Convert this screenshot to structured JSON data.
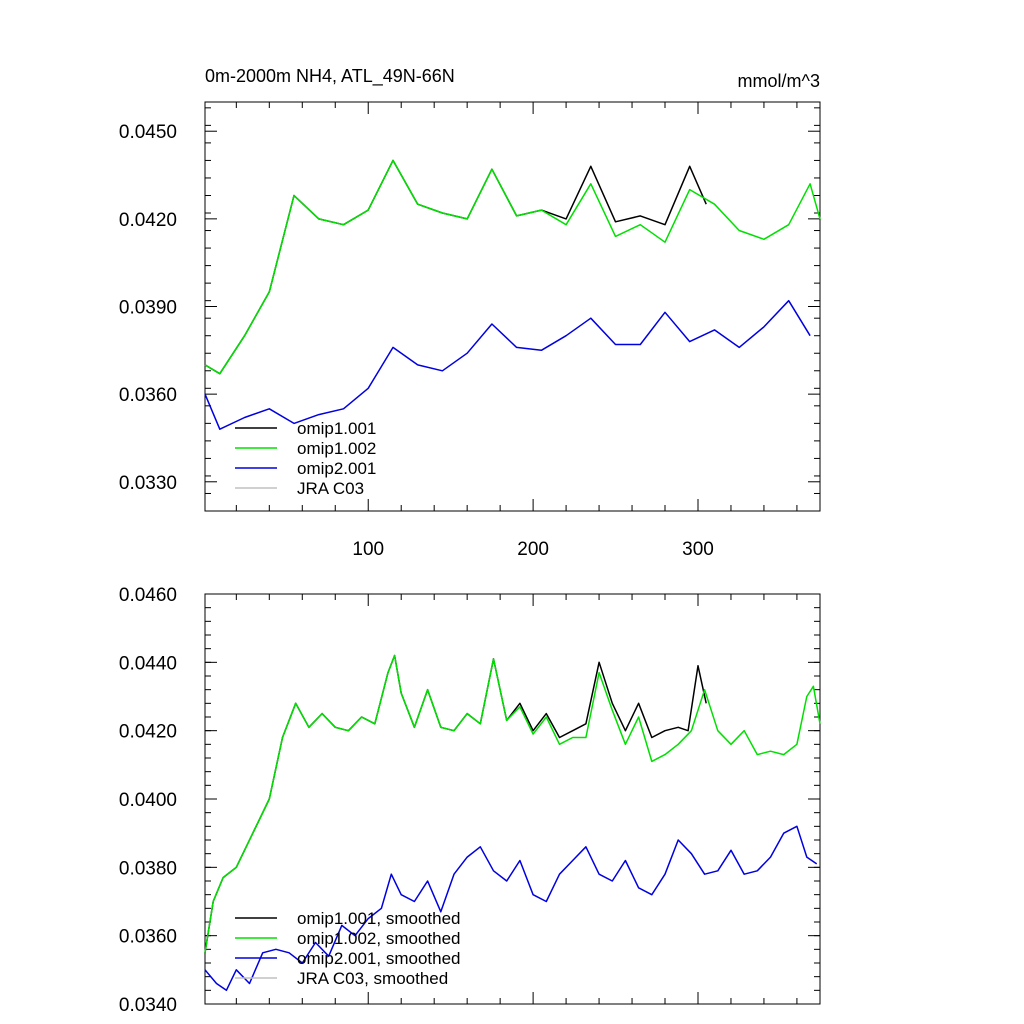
{
  "chart_data": [
    {
      "type": "line",
      "title": "0m-2000m NH4, ATL_49N-66N",
      "units": "mmol/m^3",
      "xlim": [
        1,
        374
      ],
      "ylim": [
        0.032,
        0.046
      ],
      "xticks": [
        100,
        200,
        300
      ],
      "yticks": [
        0.033,
        0.036,
        0.039,
        0.042,
        0.045
      ],
      "ytick_labels": [
        "0.0330",
        "0.0360",
        "0.0390",
        "0.0420",
        "0.0450"
      ],
      "xtick_labels": [
        "100",
        "200",
        "300"
      ],
      "legend": {
        "placement": "bottom-left"
      },
      "series": [
        {
          "name": "omip1.001",
          "color": "#000000",
          "x": [
            1,
            10,
            25,
            40,
            55,
            70,
            85,
            100,
            115,
            130,
            145,
            160,
            175,
            190,
            205,
            220,
            235,
            250,
            265,
            280,
            295,
            305
          ],
          "y": [
            0.037,
            0.0367,
            0.038,
            0.0395,
            0.0428,
            0.042,
            0.0418,
            0.0423,
            0.044,
            0.0425,
            0.0422,
            0.042,
            0.0437,
            0.0421,
            0.0423,
            0.042,
            0.0438,
            0.0419,
            0.0421,
            0.0418,
            0.0438,
            0.0425
          ]
        },
        {
          "name": "omip1.002",
          "color": "#00e000",
          "x": [
            1,
            10,
            25,
            40,
            55,
            70,
            85,
            100,
            115,
            130,
            145,
            160,
            175,
            190,
            205,
            220,
            235,
            250,
            265,
            280,
            295,
            310,
            325,
            340,
            355,
            368,
            374
          ],
          "y": [
            0.037,
            0.0367,
            0.038,
            0.0395,
            0.0428,
            0.042,
            0.0418,
            0.0423,
            0.044,
            0.0425,
            0.0422,
            0.042,
            0.0437,
            0.0421,
            0.0423,
            0.0418,
            0.0432,
            0.0414,
            0.0418,
            0.0412,
            0.043,
            0.0425,
            0.0416,
            0.0413,
            0.0418,
            0.0432,
            0.042
          ]
        },
        {
          "name": "omip2.001",
          "color": "#0000e0",
          "x": [
            1,
            10,
            25,
            40,
            55,
            70,
            85,
            100,
            115,
            130,
            145,
            160,
            175,
            190,
            205,
            220,
            235,
            250,
            265,
            280,
            295,
            310,
            325,
            340,
            355,
            368
          ],
          "y": [
            0.036,
            0.0348,
            0.0352,
            0.0355,
            0.035,
            0.0353,
            0.0355,
            0.0362,
            0.0376,
            0.037,
            0.0368,
            0.0374,
            0.0384,
            0.0376,
            0.0375,
            0.038,
            0.0386,
            0.0377,
            0.0377,
            0.0388,
            0.0378,
            0.0382,
            0.0376,
            0.0383,
            0.0392,
            0.038
          ]
        },
        {
          "name": "JRA C03",
          "color": "#c0c0c0",
          "x": [],
          "y": []
        }
      ]
    },
    {
      "type": "line",
      "title": "",
      "xlim": [
        1,
        374
      ],
      "ylim": [
        0.034,
        0.046
      ],
      "xticks": [
        100,
        200,
        300
      ],
      "yticks": [
        0.034,
        0.036,
        0.038,
        0.04,
        0.042,
        0.044,
        0.046
      ],
      "ytick_labels": [
        "0.0340",
        "0.0360",
        "0.0380",
        "0.0400",
        "0.0420",
        "0.0440",
        "0.0460"
      ],
      "legend": {
        "placement": "bottom-left"
      },
      "series": [
        {
          "name": "omip1.001, smoothed",
          "color": "#000000",
          "x": [
            1,
            6,
            12,
            20,
            30,
            40,
            48,
            56,
            64,
            72,
            80,
            88,
            96,
            104,
            112,
            116,
            120,
            128,
            136,
            144,
            152,
            160,
            168,
            176,
            184,
            192,
            200,
            208,
            216,
            224,
            232,
            240,
            248,
            256,
            264,
            272,
            280,
            288,
            294,
            300,
            305
          ],
          "y": [
            0.0355,
            0.037,
            0.0377,
            0.038,
            0.039,
            0.04,
            0.0418,
            0.0428,
            0.0421,
            0.0425,
            0.0421,
            0.042,
            0.0424,
            0.0422,
            0.0437,
            0.0442,
            0.0431,
            0.0421,
            0.0432,
            0.0421,
            0.042,
            0.0425,
            0.0422,
            0.0441,
            0.0423,
            0.0428,
            0.042,
            0.0425,
            0.0418,
            0.042,
            0.0422,
            0.044,
            0.0428,
            0.042,
            0.0428,
            0.0418,
            0.042,
            0.0421,
            0.042,
            0.0439,
            0.0428
          ]
        },
        {
          "name": "omip1.002, smoothed",
          "color": "#00e000",
          "x": [
            1,
            6,
            12,
            20,
            30,
            40,
            48,
            56,
            64,
            72,
            80,
            88,
            96,
            104,
            112,
            116,
            120,
            128,
            136,
            144,
            152,
            160,
            168,
            176,
            184,
            192,
            200,
            208,
            216,
            224,
            232,
            240,
            248,
            256,
            264,
            272,
            280,
            288,
            296,
            304,
            312,
            320,
            328,
            336,
            344,
            352,
            360,
            366,
            370,
            374
          ],
          "y": [
            0.0355,
            0.037,
            0.0377,
            0.038,
            0.039,
            0.04,
            0.0418,
            0.0428,
            0.0421,
            0.0425,
            0.0421,
            0.042,
            0.0424,
            0.0422,
            0.0437,
            0.0442,
            0.0431,
            0.0421,
            0.0432,
            0.0421,
            0.042,
            0.0425,
            0.0422,
            0.0441,
            0.0423,
            0.0427,
            0.0419,
            0.0424,
            0.0416,
            0.0418,
            0.0418,
            0.0437,
            0.0426,
            0.0416,
            0.0424,
            0.0411,
            0.0413,
            0.0416,
            0.042,
            0.0432,
            0.042,
            0.0416,
            0.042,
            0.0413,
            0.0414,
            0.0413,
            0.0416,
            0.043,
            0.0433,
            0.0422
          ]
        },
        {
          "name": "omip2.001, smoothed",
          "color": "#0000e0",
          "x": [
            1,
            8,
            14,
            20,
            28,
            36,
            44,
            52,
            60,
            68,
            76,
            84,
            92,
            100,
            108,
            114,
            120,
            128,
            136,
            144,
            152,
            160,
            168,
            176,
            184,
            192,
            200,
            208,
            216,
            224,
            232,
            240,
            248,
            256,
            264,
            272,
            280,
            288,
            296,
            304,
            312,
            320,
            328,
            336,
            344,
            352,
            360,
            366,
            372
          ],
          "y": [
            0.035,
            0.0346,
            0.0344,
            0.035,
            0.0346,
            0.0355,
            0.0356,
            0.0355,
            0.0352,
            0.0358,
            0.0354,
            0.0363,
            0.036,
            0.0365,
            0.0368,
            0.0378,
            0.0372,
            0.037,
            0.0376,
            0.0367,
            0.0378,
            0.0383,
            0.0386,
            0.0379,
            0.0376,
            0.0382,
            0.0372,
            0.037,
            0.0378,
            0.0382,
            0.0386,
            0.0378,
            0.0376,
            0.0382,
            0.0374,
            0.0372,
            0.0378,
            0.0388,
            0.0384,
            0.0378,
            0.0379,
            0.0385,
            0.0378,
            0.0379,
            0.0383,
            0.039,
            0.0392,
            0.0383,
            0.0381
          ]
        },
        {
          "name": "JRA C03, smoothed",
          "color": "#c0c0c0",
          "x": [],
          "y": []
        }
      ]
    }
  ]
}
